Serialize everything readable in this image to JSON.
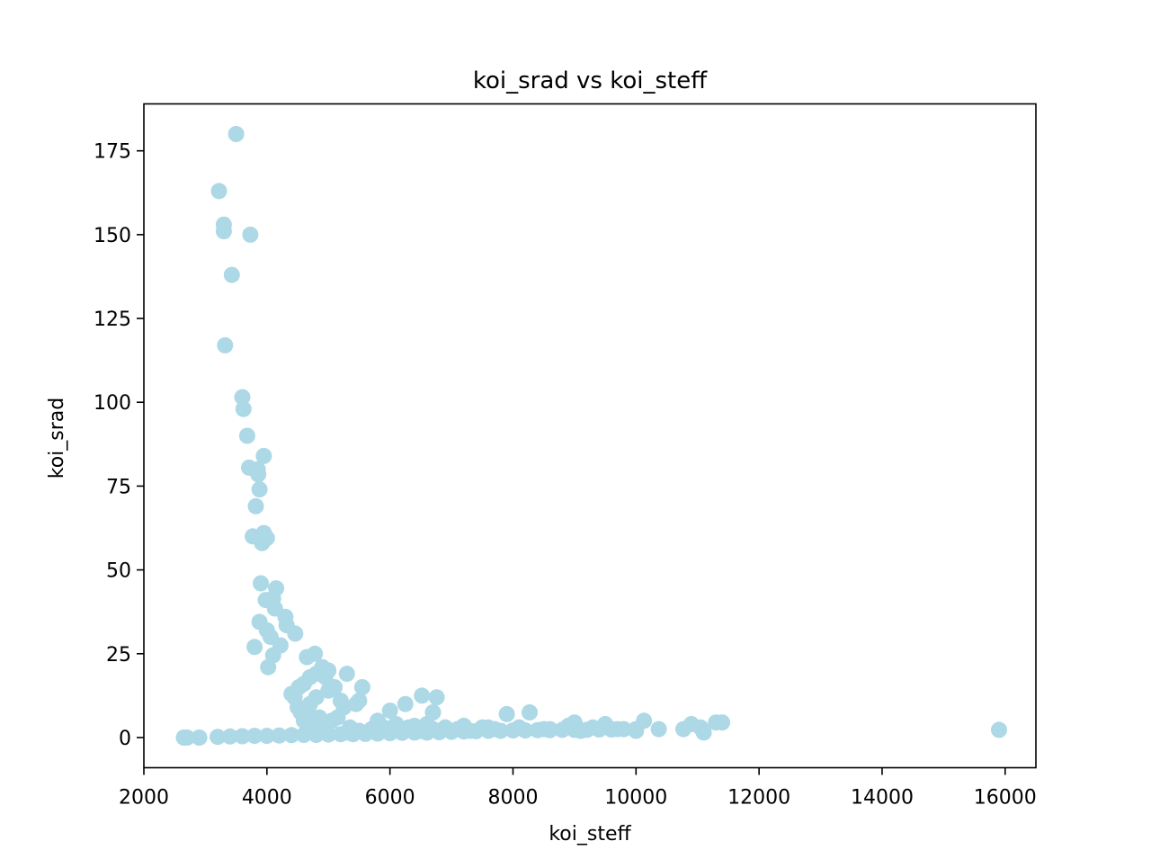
{
  "chart_data": {
    "type": "scatter",
    "title": "koi_srad vs koi_steff",
    "xlabel": "koi_steff",
    "ylabel": "koi_srad",
    "xlim": [
      2000,
      16500
    ],
    "ylim": [
      -9,
      189
    ],
    "xticks": [
      2000,
      4000,
      6000,
      8000,
      10000,
      12000,
      14000,
      16000
    ],
    "yticks": [
      0,
      25,
      50,
      75,
      100,
      125,
      150,
      175
    ],
    "xtick_labels": [
      "2000",
      "4000",
      "6000",
      "8000",
      "10000",
      "12000",
      "14000",
      "16000"
    ],
    "ytick_labels": [
      "0",
      "25",
      "50",
      "75",
      "100",
      "125",
      "150",
      "175"
    ],
    "grid": false,
    "legend": "none",
    "marker_color": "#add8e6",
    "x": [
      3500,
      3220,
      3300,
      3300,
      3730,
      3430,
      3320,
      3600,
      3620,
      3680,
      3710,
      3850,
      3950,
      3860,
      3880,
      3820,
      3770,
      3950,
      3920,
      4000,
      3900,
      4150,
      3980,
      4100,
      4130,
      3880,
      4000,
      4060,
      4300,
      4320,
      4460,
      4220,
      3800,
      4100,
      4020,
      4650,
      4780,
      4520,
      4600,
      4700,
      4900,
      5000,
      4800,
      4400,
      5300,
      5550,
      4700,
      4500,
      4550,
      4800,
      5000,
      5200,
      4450,
      4650,
      4850,
      5050,
      5250,
      5450,
      5500,
      4950,
      5100,
      4600,
      4700,
      4900,
      5150,
      5350,
      6000,
      6250,
      6520,
      6760,
      6700,
      5800,
      6100,
      6400,
      6600,
      6900,
      7200,
      7500,
      7900,
      8270,
      7600,
      8500,
      8900,
      9000,
      9300,
      9500,
      9700,
      10000,
      10130,
      10370,
      10770,
      10900,
      11050,
      11100,
      11300,
      11400,
      15900,
      2650,
      2700,
      2900,
      3200,
      3400,
      3600,
      3800,
      4000,
      4200,
      4400,
      4600,
      4800,
      5000,
      5200,
      5400,
      5600,
      5800,
      6000,
      6200,
      6400,
      6600,
      6800,
      7000,
      7200,
      7400,
      7600,
      7800,
      8000,
      8200,
      8400,
      8600,
      8800,
      9000,
      9200,
      9400,
      9600,
      9800,
      10000,
      5300,
      5500,
      5700,
      5900,
      6100,
      6300,
      6500,
      6700,
      6900,
      7100,
      7300,
      7700,
      8100,
      8600,
      9100,
      9600
    ],
    "y": [
      180,
      163,
      153,
      151,
      150,
      138,
      117,
      101.5,
      98,
      90,
      80.5,
      80,
      84,
      78.5,
      74,
      69,
      60,
      61,
      58,
      59.5,
      46,
      44.5,
      41,
      41.5,
      38.5,
      34.5,
      32,
      30,
      36,
      33.5,
      31,
      27.5,
      27,
      24.5,
      21,
      24,
      25,
      15,
      16,
      18,
      21,
      20,
      19,
      13,
      19,
      15,
      10,
      9,
      7.5,
      12,
      14,
      11,
      12,
      8,
      6,
      5,
      9,
      10,
      11,
      18,
      15,
      5,
      3,
      4,
      6,
      3,
      8,
      10,
      12.5,
      12,
      7.5,
      5,
      4,
      3.5,
      4,
      3,
      3.5,
      3,
      7,
      7.5,
      3,
      2.5,
      3.5,
      4.5,
      3,
      4,
      2.5,
      2,
      5,
      2.5,
      2.5,
      4,
      3,
      1.5,
      4.5,
      4.5,
      2.3,
      0,
      0,
      0,
      0.2,
      0.3,
      0.4,
      0.5,
      0.5,
      0.6,
      0.7,
      0.8,
      0.8,
      0.9,
      1.0,
      1.0,
      1.1,
      1.2,
      1.3,
      1.4,
      1.5,
      1.5,
      1.6,
      1.7,
      1.8,
      1.9,
      2.0,
      2.0,
      2.1,
      2.1,
      2.2,
      2.2,
      2.3,
      2.3,
      2.3,
      2.4,
      2.4,
      2.5,
      2.5,
      1.5,
      2.0,
      2.5,
      3.0,
      2.5,
      3.0,
      2.0,
      2.5,
      3.0,
      2.5,
      2.0,
      2.5,
      3.0,
      2.5,
      2.0,
      2.5
    ]
  }
}
